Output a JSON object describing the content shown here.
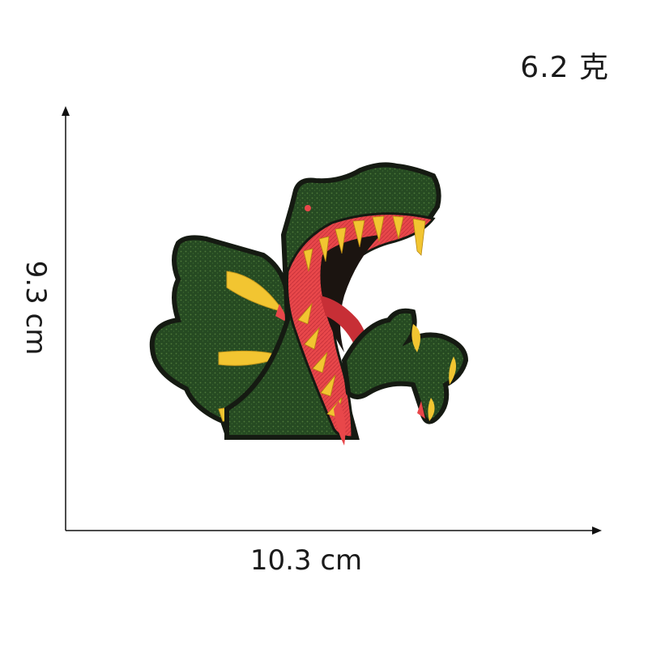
{
  "product": {
    "weight_label": "6.2 克",
    "height_label": "9.3 cm",
    "width_label": "10.3 cm"
  },
  "image": {
    "subject": "embroidered-dinosaur-patch",
    "colors": {
      "green": "#264a22",
      "mouth_red": "#e8474a",
      "teeth_yellow": "#f2c531",
      "outline": "#151a12"
    }
  }
}
